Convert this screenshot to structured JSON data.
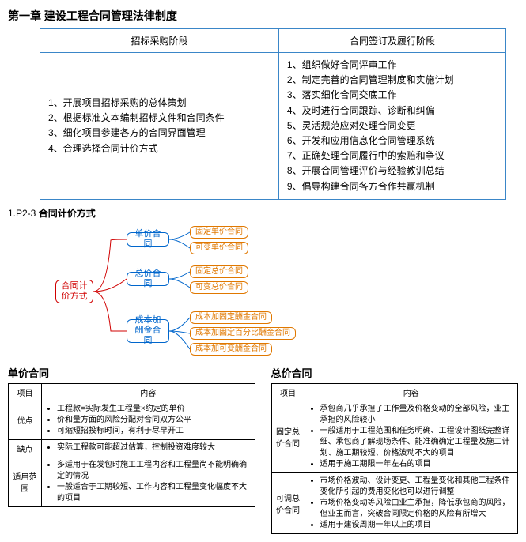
{
  "chapter_title": "第一章 建设工程合同管理法律制度",
  "stage_table": {
    "headers": [
      "招标采购阶段",
      "合同签订及履行阶段"
    ],
    "left": [
      "1、开展项目招标采购的总体策划",
      "2、根据标准文本编制招标文件和合同条件",
      "3、细化项目参建各方的合同界面管理",
      "4、合理选择合同计价方式"
    ],
    "right": [
      "1、组织做好合同评审工作",
      "2、制定完善的合同管理制度和实施计划",
      "3、落实细化合同交底工作",
      "4、及时进行合同跟踪、诊断和纠偏",
      "5、灵活规范应对处理合同变更",
      "6、开发和应用信息化合同管理系统",
      "7、正确处理合同履行中的索赔和争议",
      "8、开展合同管理评价与经验教训总结",
      "9、倡导构建合同各方合作共赢机制"
    ]
  },
  "section_label_prefix": "1.P2-3",
  "section_label_bold": "合同计价方式",
  "mindmap": {
    "root": "合同计价方式",
    "colors": {
      "root": "#d00000",
      "l2": "#0066cc",
      "l3": "#e07800"
    },
    "l2": [
      "单价合同",
      "总价合同",
      "成本加酬金合同"
    ],
    "l3_groups": [
      [
        "固定单价合同",
        "可变单价合同"
      ],
      [
        "固定总价合同",
        "可变总价合同"
      ],
      [
        "成本加固定酬金合同",
        "成本加固定百分比酬金合同",
        "成本加可变酬金合同"
      ]
    ]
  },
  "table1": {
    "title": "单价合同",
    "headers": [
      "项目",
      "内容"
    ],
    "rows": [
      {
        "k": "优点",
        "items": [
          "工程款=实际发生工程量×约定的单价",
          "价和量方面的风险分配对合同双方公平",
          "可缩短招投标时间，有利于尽早开工"
        ]
      },
      {
        "k": "缺点",
        "items": [
          "实际工程款可能超过估算，控制投资难度较大"
        ]
      },
      {
        "k": "适用范围",
        "items": [
          "多适用于在发包时施工工程内容和工程量尚不能明确确定的情况",
          "一般适合于工期较短、工作内容和工程量变化幅度不大的项目"
        ]
      }
    ]
  },
  "table2": {
    "title": "总价合同",
    "headers": [
      "项目",
      "内容"
    ],
    "rows": [
      {
        "k": "固定总价合同",
        "items": [
          "承包商几乎承担了工作量及价格变动的全部风险，业主承担的风险较小",
          "一般适用于工程范围和任务明确、工程设计图纸完整详细、承包商了解现场条件、能准确确定工程量及施工计划、施工期较短、价格波动不大的项目",
          "适用于施工期限一年左右的项目"
        ]
      },
      {
        "k": "可调总价合同",
        "items": [
          "市场价格波动、设计变更、工程量变化和其他工程条件变化所引起的费用变化也可以进行调整",
          "市场价格变动等风险由业主承担，降低承包商的风险，但业主而言，突破合同限定价格的风险有所增大",
          "适用于建设周期一年以上的项目"
        ]
      }
    ]
  }
}
